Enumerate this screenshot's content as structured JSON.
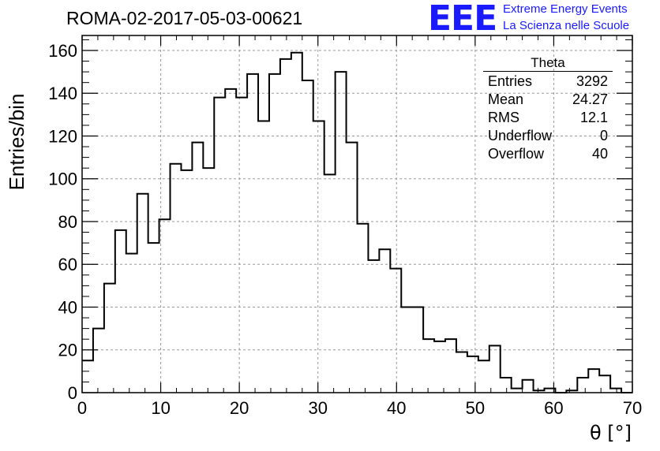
{
  "header": {
    "title": "ROMA-02-2017-05-03-00621",
    "logo_text": "EEE",
    "logo_line1": "Extreme Energy Events",
    "logo_line2": "La Scienza nelle Scuole"
  },
  "stats": {
    "title": "Theta",
    "rows": [
      {
        "key": "Entries",
        "value": "3292"
      },
      {
        "key": "Mean",
        "value": "24.27"
      },
      {
        "key": "RMS",
        "value": "12.1"
      },
      {
        "key": "Underflow",
        "value": "0"
      },
      {
        "key": "Overflow",
        "value": "40"
      }
    ]
  },
  "colors": {
    "line": "#000000",
    "grid": "#9a9a9a",
    "logo": "#1a1aff"
  },
  "chart_data": {
    "type": "histogram",
    "title": "ROMA-02-2017-05-03-00621",
    "xlabel": "θ [°]",
    "ylabel": "Entries/bin",
    "xlim": [
      0,
      70
    ],
    "ylim": [
      0,
      167
    ],
    "grid": true,
    "bin_width": 1.4,
    "x_ticks": [
      "0",
      "10",
      "20",
      "30",
      "40",
      "50",
      "60",
      "70"
    ],
    "y_ticks": [
      "0",
      "20",
      "40",
      "60",
      "80",
      "100",
      "120",
      "140",
      "160"
    ],
    "values": [
      15,
      30,
      51,
      76,
      65,
      93,
      70,
      81,
      107,
      104,
      117,
      105,
      138,
      142,
      138,
      149,
      127,
      149,
      156,
      159,
      146,
      127,
      102,
      150,
      117,
      79,
      62,
      67,
      58,
      40,
      40,
      25,
      24,
      25,
      19,
      17,
      15,
      22,
      7,
      2,
      6,
      1,
      2,
      0,
      1,
      7,
      11,
      8,
      2,
      0
    ]
  }
}
